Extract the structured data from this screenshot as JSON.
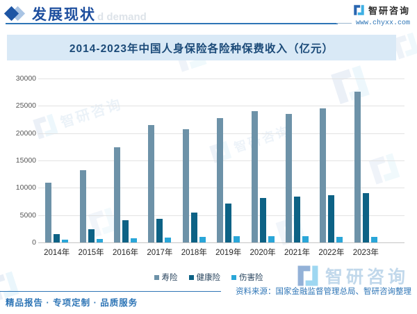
{
  "header": {
    "title": "发展现状",
    "watermark_text": "d demand"
  },
  "brand": {
    "name": "智研咨询",
    "url": "www.chyxx.com"
  },
  "watermark": {
    "brand": "智研咨询"
  },
  "chart_data": {
    "type": "bar",
    "title": "2014-2023年中国人身保险各险种保费收入（亿元）",
    "xlabel": "",
    "ylabel": "",
    "ylim": [
      0,
      30000
    ],
    "yticks": [
      0,
      5000,
      10000,
      15000,
      20000,
      25000,
      30000
    ],
    "grid": true,
    "legend_position": "bottom",
    "categories": [
      "2014年",
      "2015年",
      "2016年",
      "2017年",
      "2018年",
      "2019年",
      "2020年",
      "2021年",
      "2022年",
      "2023年"
    ],
    "series": [
      {
        "name": "寿险",
        "color": "#6d92a8",
        "values": [
          10902,
          13242,
          17442,
          21456,
          20723,
          22754,
          23982,
          23572,
          24519,
          27646
        ]
      },
      {
        "name": "健康险",
        "color": "#0d6285",
        "values": [
          1587,
          2410,
          4042,
          4389,
          5448,
          7066,
          8173,
          8447,
          8653,
          9035
        ]
      },
      {
        "name": "伤害险",
        "color": "#2aa6d8",
        "values": [
          543,
          636,
          750,
          901,
          1076,
          1175,
          1174,
          1210,
          1073,
          1030
        ]
      }
    ]
  },
  "footer": {
    "tagline": "精品报告 · 专项定制 · 品质服务",
    "source": "资料来源：国家金融监督管理总局、智研咨询整理"
  }
}
